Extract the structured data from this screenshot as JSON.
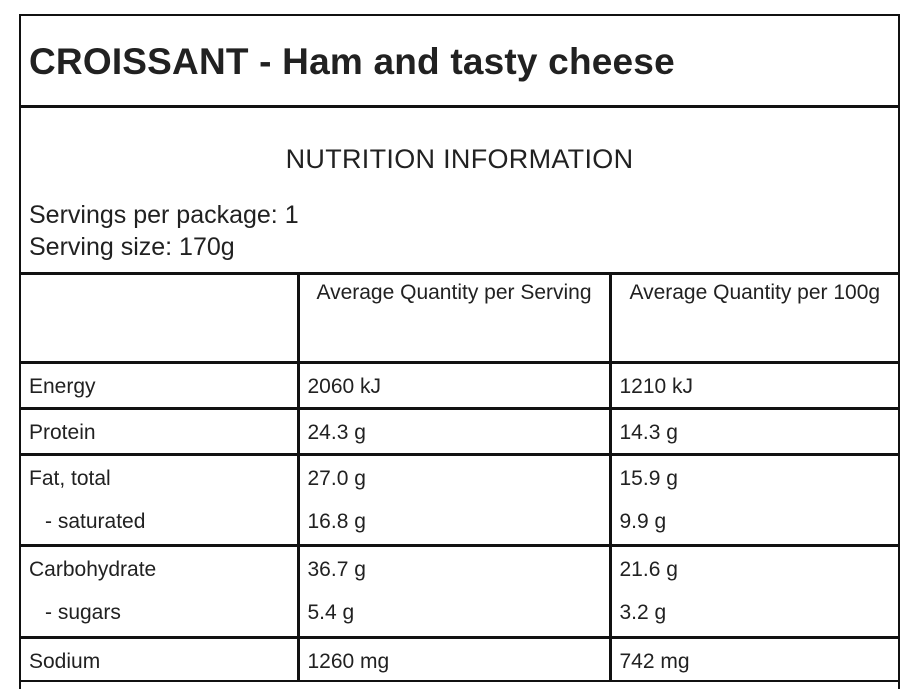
{
  "title": "CROISSANT - Ham and tasty cheese",
  "heading": "NUTRITION INFORMATION",
  "servings_per_package": "Servings per package: 1",
  "serving_size": "Serving size: 170g",
  "table": {
    "header": [
      "",
      "Average Quantity per Serving",
      "Average Quantity per 100g"
    ],
    "rows": [
      {
        "label": "Energy",
        "per_serving": "2060 kJ",
        "per_100g": "1210 kJ"
      },
      {
        "label": "Protein",
        "per_serving": "24.3 g",
        "per_100g": "14.3 g"
      },
      {
        "label": "Fat, total",
        "per_serving": "27.0 g",
        "per_100g": "15.9 g"
      },
      {
        "label": "- saturated",
        "per_serving": "16.8 g",
        "per_100g": "9.9 g"
      },
      {
        "label": "Carbohydrate",
        "per_serving": "36.7 g",
        "per_100g": "21.6 g"
      },
      {
        "label": "- sugars",
        "per_serving": "5.4 g",
        "per_100g": "3.2 g"
      },
      {
        "label": "Sodium",
        "per_serving": "1260 mg",
        "per_100g": "742 mg"
      }
    ]
  }
}
